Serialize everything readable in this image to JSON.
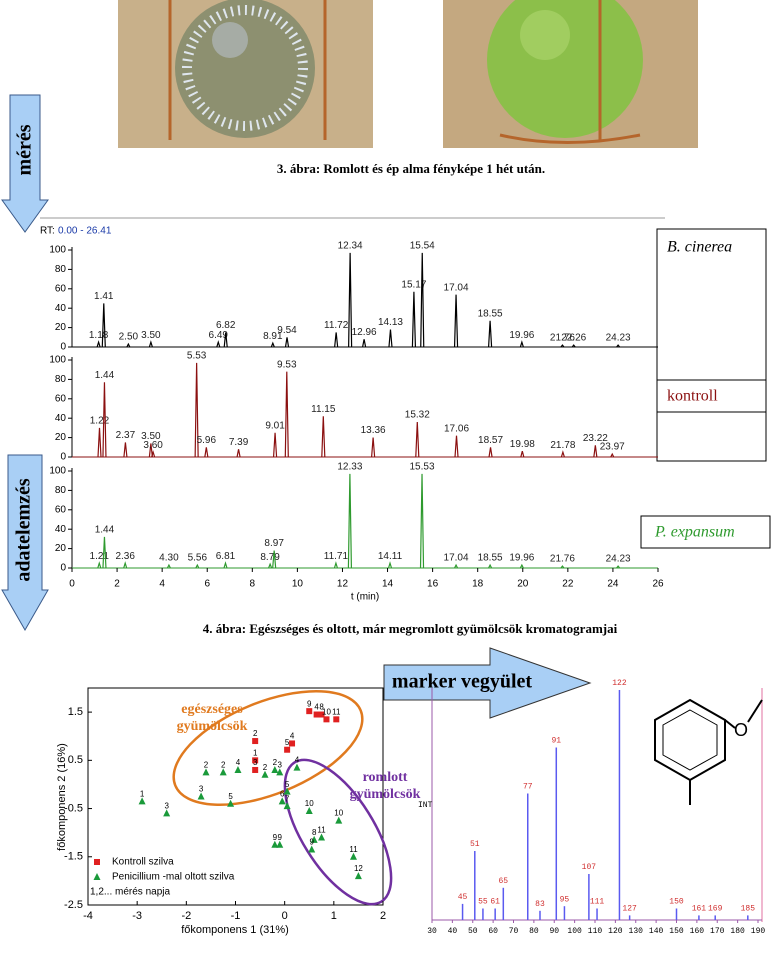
{
  "figure3": {
    "caption": "3. ábra: Romlott és ép alma fényképe 1 hét után."
  },
  "figure4": {
    "caption": "4. ábra: Egészséges és oltott, már megromlott gyümölcsök kromatogramjai"
  },
  "arrows": {
    "measure": "mérés",
    "analysis": "adatelemzés",
    "marker": "marker vegyület"
  },
  "chart_data": [
    {
      "type": "chromatogram",
      "rt_label": "RT:",
      "rt_range": "0.00 - 26.41",
      "xlabel": "t (min)",
      "xlim": [
        0,
        26
      ],
      "xticks": [
        0,
        2,
        4,
        6,
        8,
        10,
        12,
        14,
        16,
        18,
        20,
        22,
        24,
        26
      ],
      "ylim": [
        0,
        100
      ],
      "yticks": [
        0,
        20,
        40,
        60,
        80,
        100
      ],
      "series": [
        {
          "name": "B. cinerea",
          "color": "#000000",
          "x": [
            1.18,
            1.41,
            2.5,
            3.5,
            6.49,
            6.82,
            8.91,
            9.54,
            11.72,
            12.34,
            12.96,
            14.13,
            15.17,
            15.54,
            17.04,
            18.55,
            19.96,
            21.76,
            22.26,
            24.23
          ],
          "peak_labels": [
            "1.18",
            "1.41",
            "2.50",
            "3.50",
            "6.49",
            "6.82",
            "8.91",
            "9.54",
            "11.72",
            "12.34",
            "12.96",
            "14.13",
            "15.17",
            "15.54",
            "17.04",
            "18.55",
            "19.96",
            "21.76",
            "22.26",
            "24.23"
          ],
          "values": [
            5,
            45,
            3,
            5,
            5,
            15,
            4,
            10,
            15,
            97,
            8,
            18,
            57,
            97,
            54,
            27,
            5,
            2,
            2,
            2
          ]
        },
        {
          "name": "kontroll",
          "color": "#8b1010",
          "x": [
            1.22,
            1.44,
            2.37,
            3.5,
            3.6,
            5.53,
            5.96,
            7.39,
            9.01,
            9.53,
            11.15,
            13.36,
            15.32,
            17.06,
            18.57,
            19.98,
            21.78,
            23.22,
            23.97
          ],
          "peak_labels": [
            "1.22",
            "1.44",
            "2.37",
            "3.50",
            "3.60",
            "5.53",
            "5.96",
            "7.39",
            "9.01",
            "9.53",
            "11.15",
            "13.36",
            "15.32",
            "17.06",
            "18.57",
            "19.98",
            "21.78",
            "23.22",
            "23.97"
          ],
          "values": [
            30,
            77,
            15,
            14,
            5,
            97,
            10,
            8,
            25,
            88,
            42,
            20,
            36,
            22,
            10,
            6,
            5,
            12,
            3
          ]
        },
        {
          "name": "P. expansum",
          "color": "#2e9a2e",
          "x": [
            1.21,
            1.44,
            2.36,
            4.3,
            5.56,
            6.81,
            8.79,
            8.97,
            11.71,
            12.33,
            14.11,
            15.53,
            17.04,
            18.55,
            19.96,
            21.76,
            24.23
          ],
          "peak_labels": [
            "1.21",
            "1.44",
            "2.36",
            "4.30",
            "5.56",
            "6.81",
            "8.79",
            "8.97",
            "11.71",
            "12.33",
            "14.11",
            "15.53",
            "17.04",
            "18.55",
            "19.96",
            "21.76",
            "24.23"
          ],
          "values": [
            5,
            32,
            5,
            3,
            3,
            5,
            4,
            18,
            5,
            97,
            5,
            97,
            3,
            3,
            3,
            2,
            2
          ]
        }
      ]
    },
    {
      "type": "scatter",
      "xlabel": "főkomponens 1 (31%)",
      "ylabel": "főkomponens 2 (16%)",
      "xlim": [
        -4,
        2
      ],
      "xticks": [
        -4,
        -3,
        -2,
        -1,
        0,
        1,
        2
      ],
      "ylim": [
        -2.5,
        2
      ],
      "yticks": [
        1.5,
        0.5,
        -0.5,
        -1.5,
        -2.5
      ],
      "legend_note": "1,2... mérés napja",
      "annotations": [
        {
          "lines": [
            "egészséges",
            "gyümölcsök"
          ],
          "color": "#e07a1f"
        },
        {
          "lines": [
            "romlott",
            "gyümölcsök"
          ],
          "color": "#7030a0"
        }
      ],
      "series": [
        {
          "name": "Kontroll szilva",
          "color": "#e02020",
          "marker": "square",
          "x": [
            0.5,
            0.65,
            0.75,
            0.85,
            1.05,
            -0.6,
            0.15,
            0.05,
            -0.6,
            -0.6
          ],
          "values": [
            1.52,
            1.45,
            1.45,
            1.35,
            1.35,
            0.9,
            0.85,
            0.72,
            0.5,
            0.3
          ],
          "labels": [
            "9",
            "4",
            "8",
            "10",
            "11",
            "2",
            "4",
            "5",
            "1",
            "3"
          ]
        },
        {
          "name": "Penicillium -mal oltott szilva",
          "color": "#1a9a3a",
          "marker": "triangle",
          "x": [
            -2.9,
            -2.4,
            -1.6,
            -1.25,
            -0.95,
            -1.7,
            -1.1,
            -0.4,
            -0.2,
            -0.1,
            0.25,
            0.05,
            -0.05,
            0.05,
            0.5,
            -0.2,
            -0.1,
            0.6,
            0.75,
            0.55,
            1.1,
            1.4,
            1.5
          ],
          "values": [
            -0.35,
            -0.6,
            0.25,
            0.25,
            0.3,
            -0.25,
            -0.4,
            0.2,
            0.3,
            0.25,
            0.35,
            -0.15,
            -0.35,
            -0.45,
            -0.55,
            -1.25,
            -1.25,
            -1.15,
            -1.1,
            -1.35,
            -0.75,
            -1.5,
            -1.9
          ],
          "labels": [
            "1",
            "3",
            "2",
            "2",
            "4",
            "3",
            "5",
            "2",
            "2",
            "3",
            "4",
            "5",
            "6",
            "7",
            "10",
            "9",
            "9",
            "8",
            "11",
            "9",
            "10",
            "11",
            "12"
          ]
        }
      ]
    },
    {
      "type": "spectrum",
      "ylabel": "INT",
      "structure_atom": "O",
      "xlim": [
        30,
        190
      ],
      "xticks": [
        30,
        40,
        50,
        60,
        70,
        80,
        90,
        100,
        110,
        120,
        130,
        140,
        150,
        160,
        170,
        180,
        190
      ],
      "ylim": [
        0,
        100
      ],
      "color": "#5a5af0",
      "label_color": "#d03030",
      "x": [
        45,
        51,
        55,
        61,
        65,
        77,
        83,
        91,
        95,
        107,
        111,
        122,
        127,
        150,
        161,
        169,
        185
      ],
      "values": [
        7,
        30,
        5,
        5,
        14,
        55,
        4,
        75,
        6,
        20,
        5,
        100,
        2,
        5,
        2,
        2,
        2
      ]
    }
  ]
}
